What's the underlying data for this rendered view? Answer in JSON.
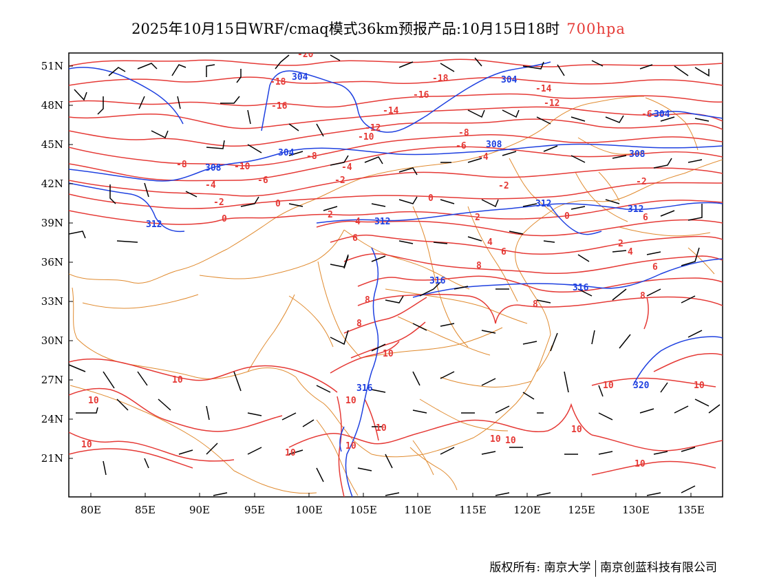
{
  "header": {
    "title": "2025年10月15日WRF/cmaq模式36km预报产品:10月15日18时",
    "level": "700hpa"
  },
  "colors": {
    "temperature": "#e53935",
    "height": "#1e40e0",
    "boundary": "#e08a2e",
    "wind": "#000000"
  },
  "axes": {
    "lon_ticks": [
      "80E",
      "85E",
      "90E",
      "95E",
      "100E",
      "105E",
      "110E",
      "115E",
      "120E",
      "125E",
      "130E",
      "135E"
    ],
    "lat_ticks": [
      "51N",
      "48N",
      "45N",
      "42N",
      "39N",
      "36N",
      "33N",
      "30N",
      "27N",
      "24N",
      "21N"
    ]
  },
  "temperature_labels": [
    "-20",
    "-18",
    "-18",
    "-16",
    "-16",
    "-14",
    "-14",
    "-12",
    "-12",
    "-10",
    "-10",
    "-8",
    "-8",
    "-8",
    "-6",
    "-6",
    "-6",
    "-4",
    "-4",
    "-4",
    "-2",
    "-2",
    "-2",
    "-2",
    "0",
    "0",
    "0",
    "0",
    "2",
    "2",
    "2",
    "4",
    "4",
    "4",
    "6",
    "6",
    "6",
    "6",
    "8",
    "8",
    "8",
    "10",
    "10",
    "10",
    "10",
    "10",
    "10",
    "10",
    "10",
    "10",
    "10",
    "10",
    "10"
  ],
  "height_labels": [
    "304",
    "304",
    "304",
    "304",
    "308",
    "308",
    "308",
    "312",
    "312",
    "312",
    "316",
    "316",
    "316",
    "320"
  ],
  "footer": {
    "copyright": "版权所有: 南京大学",
    "company": "南京创蓝科技有限公司"
  }
}
